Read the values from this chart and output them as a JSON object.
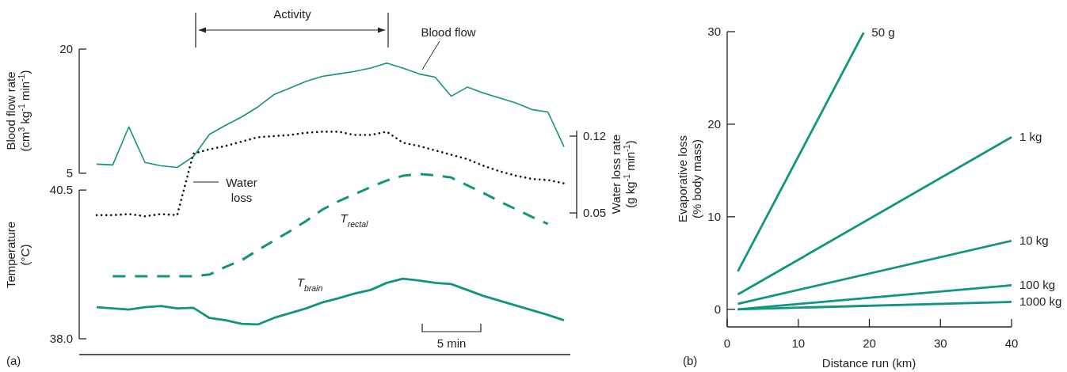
{
  "chart_data": [
    {
      "type": "line",
      "categories": [
        null,
        null,
        null,
        null,
        null,
        null,
        null,
        null,
        null,
        null,
        null,
        null,
        null,
        null,
        null,
        null,
        null,
        null,
        null,
        null,
        null,
        null,
        null,
        null,
        null,
        null,
        null,
        null,
        null,
        null
      ],
      "series": [
        {
          "name": "Blood flow",
          "color": "#12957f",
          "axis": "y",
          "line_style": "solid",
          "values": [
            6.1,
            6.0,
            10.6,
            6.3,
            5.9,
            5.7,
            7.0,
            9.7,
            10.8,
            11.8,
            13.0,
            14.5,
            15.3,
            16.1,
            16.7,
            17.0,
            17.3,
            17.7,
            18.3,
            17.7,
            17.0,
            16.6,
            14.3,
            15.4,
            14.7,
            14.1,
            13.5,
            12.7,
            12.4,
            8.2
          ]
        },
        {
          "name": "Water loss",
          "color": "#111111",
          "axis": "y2",
          "line_style": "dotted",
          "values": [
            0.048,
            0.048,
            0.049,
            0.047,
            0.049,
            0.048,
            0.104,
            0.108,
            0.111,
            0.115,
            0.119,
            0.12,
            0.121,
            0.123,
            0.124,
            0.124,
            0.121,
            0.121,
            0.124,
            0.114,
            0.111,
            0.107,
            0.103,
            0.099,
            0.093,
            0.088,
            0.084,
            0.081,
            0.08,
            0.077
          ]
        },
        {
          "name": "T$_{rectal}$",
          "color": "#12957f",
          "axis": "y3",
          "line_style": "dashed",
          "values": [
            null,
            39.05,
            39.05,
            39.05,
            39.05,
            39.05,
            39.05,
            39.08,
            39.21,
            39.32,
            39.49,
            39.65,
            39.81,
            39.98,
            40.17,
            40.31,
            40.43,
            40.55,
            40.66,
            40.74,
            40.77,
            40.75,
            40.71,
            40.58,
            40.45,
            40.31,
            40.18,
            40.05,
            39.93,
            null
          ]
        },
        {
          "name": "T$_{brain}$",
          "color": "#12957f",
          "axis": "y3",
          "line_style": "solid",
          "values": [
            38.53,
            38.51,
            38.49,
            38.53,
            38.55,
            38.51,
            38.52,
            38.35,
            38.31,
            38.25,
            38.24,
            38.35,
            38.43,
            38.51,
            38.61,
            38.68,
            38.76,
            38.82,
            38.94,
            39.01,
            38.98,
            38.94,
            38.92,
            38.82,
            38.72,
            38.64,
            38.56,
            38.48,
            38.4,
            38.31
          ]
        }
      ],
      "ylabel": "Blood flow rate (cm$^{3}$ kg$^{-1}$ min$^{-1}$)",
      "ylim": [
        -15,
        20
      ],
      "yticks": [
        5,
        20
      ],
      "y2label": "Water loss rate (g kg$^{-1}$ min$^{-1}$)",
      "y2lim": [
        0.045,
        0.125
      ],
      "y2ticks": [
        0.05,
        0.12
      ],
      "y3label": "Temperature (°C)",
      "y3lim": [
        38,
        42.87
      ],
      "y3ticks": [
        {
          "value": 38,
          "label": "38.0"
        },
        40.5
      ],
      "tick_labels": "y",
      "annotations": [
        "Activity",
        "5 min",
        "(a)"
      ]
    },
    {
      "type": "line",
      "xlabel": "Distance run (km)",
      "ylabel": "Evaporative loss (% body mass)",
      "xlim": [
        0,
        40
      ],
      "xticks": [
        0,
        10,
        20,
        30,
        40
      ],
      "ylim": [
        -1.9,
        30
      ],
      "yticks": [
        0,
        10,
        20,
        30
      ],
      "series": [
        {
          "name": "50 g",
          "color": "#12957f",
          "x": [
            1.5,
            19.2
          ],
          "values": [
            4.1,
            29.9
          ]
        },
        {
          "name": "1 kg",
          "color": "#12957f",
          "x": [
            1.5,
            40
          ],
          "values": [
            1.6,
            18.6
          ]
        },
        {
          "name": "10 kg",
          "color": "#12957f",
          "x": [
            1.5,
            40
          ],
          "values": [
            0.6,
            7.4
          ]
        },
        {
          "name": "100 kg",
          "color": "#12957f",
          "x": [
            1.5,
            40
          ],
          "values": [
            0.0,
            2.6
          ]
        },
        {
          "name": "1000 kg",
          "color": "#12957f",
          "x": [
            1.5,
            40
          ],
          "values": [
            0.0,
            0.8
          ]
        }
      ],
      "annotations": [
        "(b)"
      ]
    }
  ]
}
